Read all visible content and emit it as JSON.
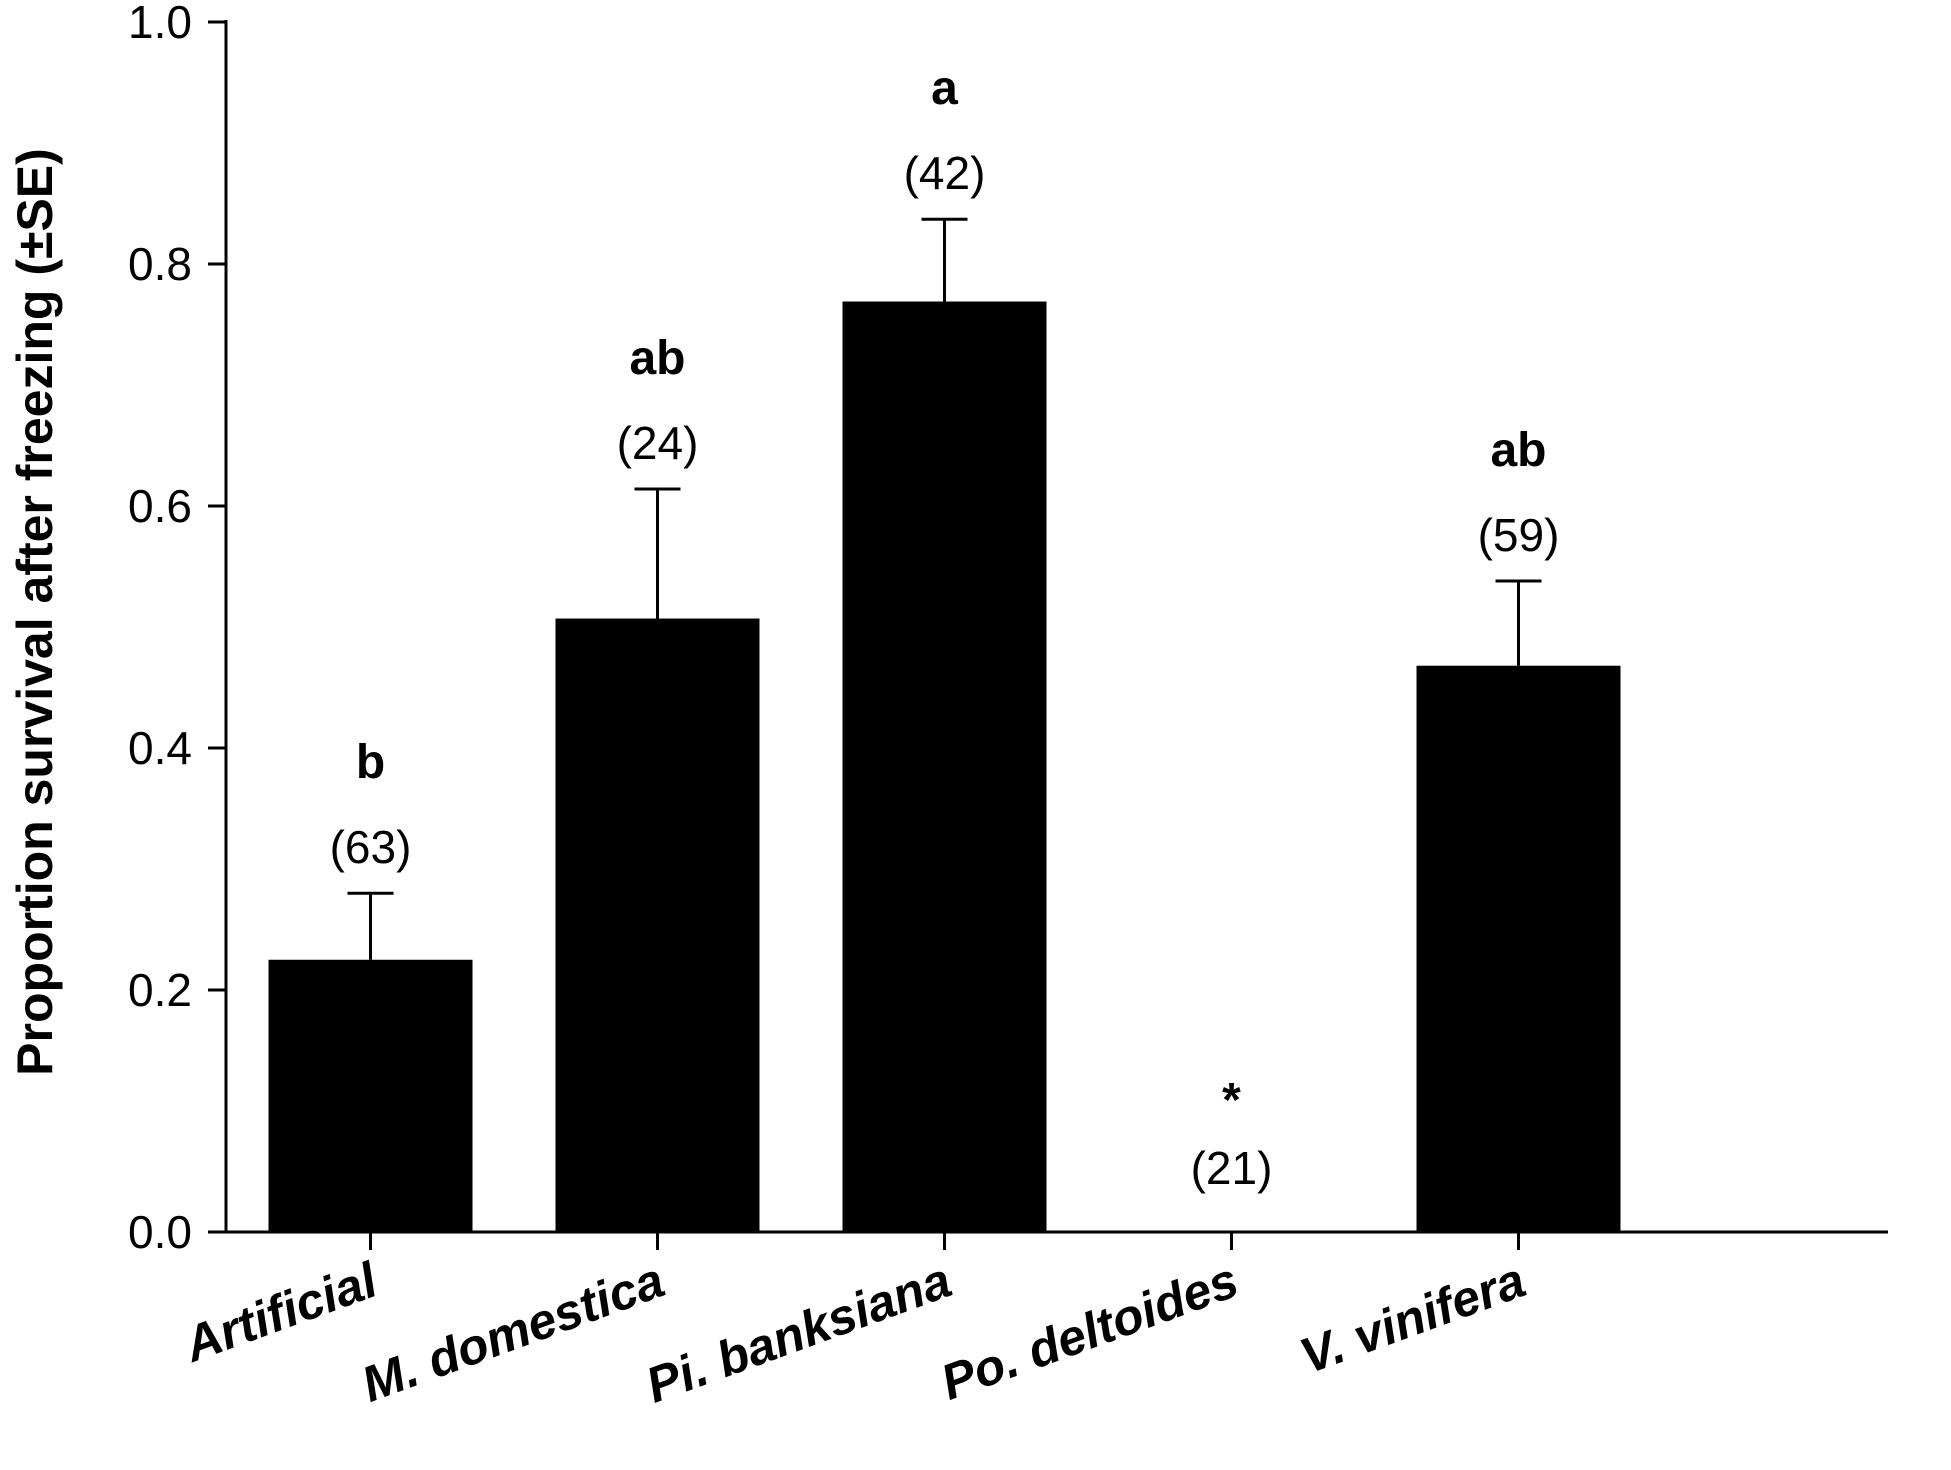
{
  "chart_data": {
    "type": "bar",
    "ylabel": "Proportion survival after freezing (±SE)",
    "xlabel": "",
    "ylim": [
      0.0,
      1.0
    ],
    "yticks": [
      0.0,
      0.2,
      0.4,
      0.6,
      0.8,
      1.0
    ],
    "ytick_labels": [
      "0.0",
      "0.2",
      "0.4",
      "0.6",
      "0.8",
      "1.0"
    ],
    "grid": false,
    "bar_color": "#000000",
    "categories": [
      "Artificial",
      "M. domestica",
      "Pi. banksiana",
      "Po. deltoides",
      "V. vinifera"
    ],
    "values": [
      0.225,
      0.507,
      0.769,
      0.0,
      0.468
    ],
    "se": [
      0.055,
      0.107,
      0.068,
      0.0,
      0.07
    ],
    "group_labels": [
      "b",
      "ab",
      "a",
      "*",
      "ab"
    ],
    "n_labels": [
      "(63)",
      "(24)",
      "(42)",
      "(21)",
      "(59)"
    ]
  }
}
